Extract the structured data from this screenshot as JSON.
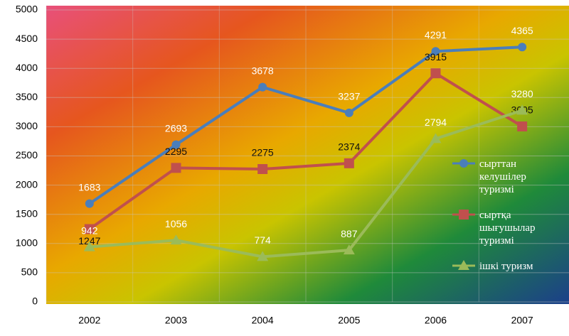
{
  "chart_data": {
    "type": "line",
    "categories": [
      "2002",
      "2003",
      "2004",
      "2005",
      "2006",
      "2007"
    ],
    "series": [
      {
        "name": "сырттан келушілер туризмі",
        "color": "#4a7ebb",
        "marker": "circle",
        "values": [
          1683,
          2693,
          3678,
          3237,
          4291,
          4365
        ]
      },
      {
        "name": "сыртқа шығушылар туризмі",
        "color": "#c0504d",
        "marker": "square",
        "values": [
          1247,
          2295,
          2275,
          2374,
          3915,
          3005
        ]
      },
      {
        "name": "ішкі туризм",
        "color": "#9bbb59",
        "marker": "triangle",
        "values": [
          942,
          1056,
          774,
          887,
          2794,
          3280
        ]
      }
    ],
    "ylim": [
      0,
      5000
    ],
    "yticks": [
      0,
      500,
      1000,
      1500,
      2000,
      2500,
      3000,
      3500,
      4000,
      4500,
      5000
    ],
    "grid": true,
    "legend": "right"
  }
}
